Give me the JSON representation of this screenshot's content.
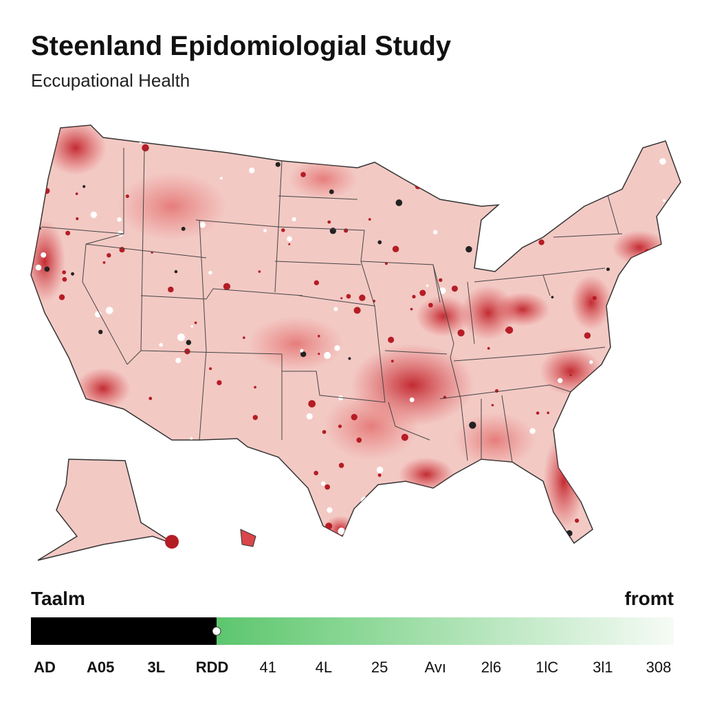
{
  "header": {
    "title": "Steenland Epidomiologial Study",
    "subtitle": "Eccupational Health"
  },
  "slider": {
    "left_label": "Taalm",
    "right_label": "fromt",
    "ticks": [
      "AD",
      "A05",
      "3L",
      "RDD",
      "41",
      "4L",
      "25",
      "Avı",
      "2l6",
      "1lC",
      "3l1",
      "308"
    ]
  }
}
